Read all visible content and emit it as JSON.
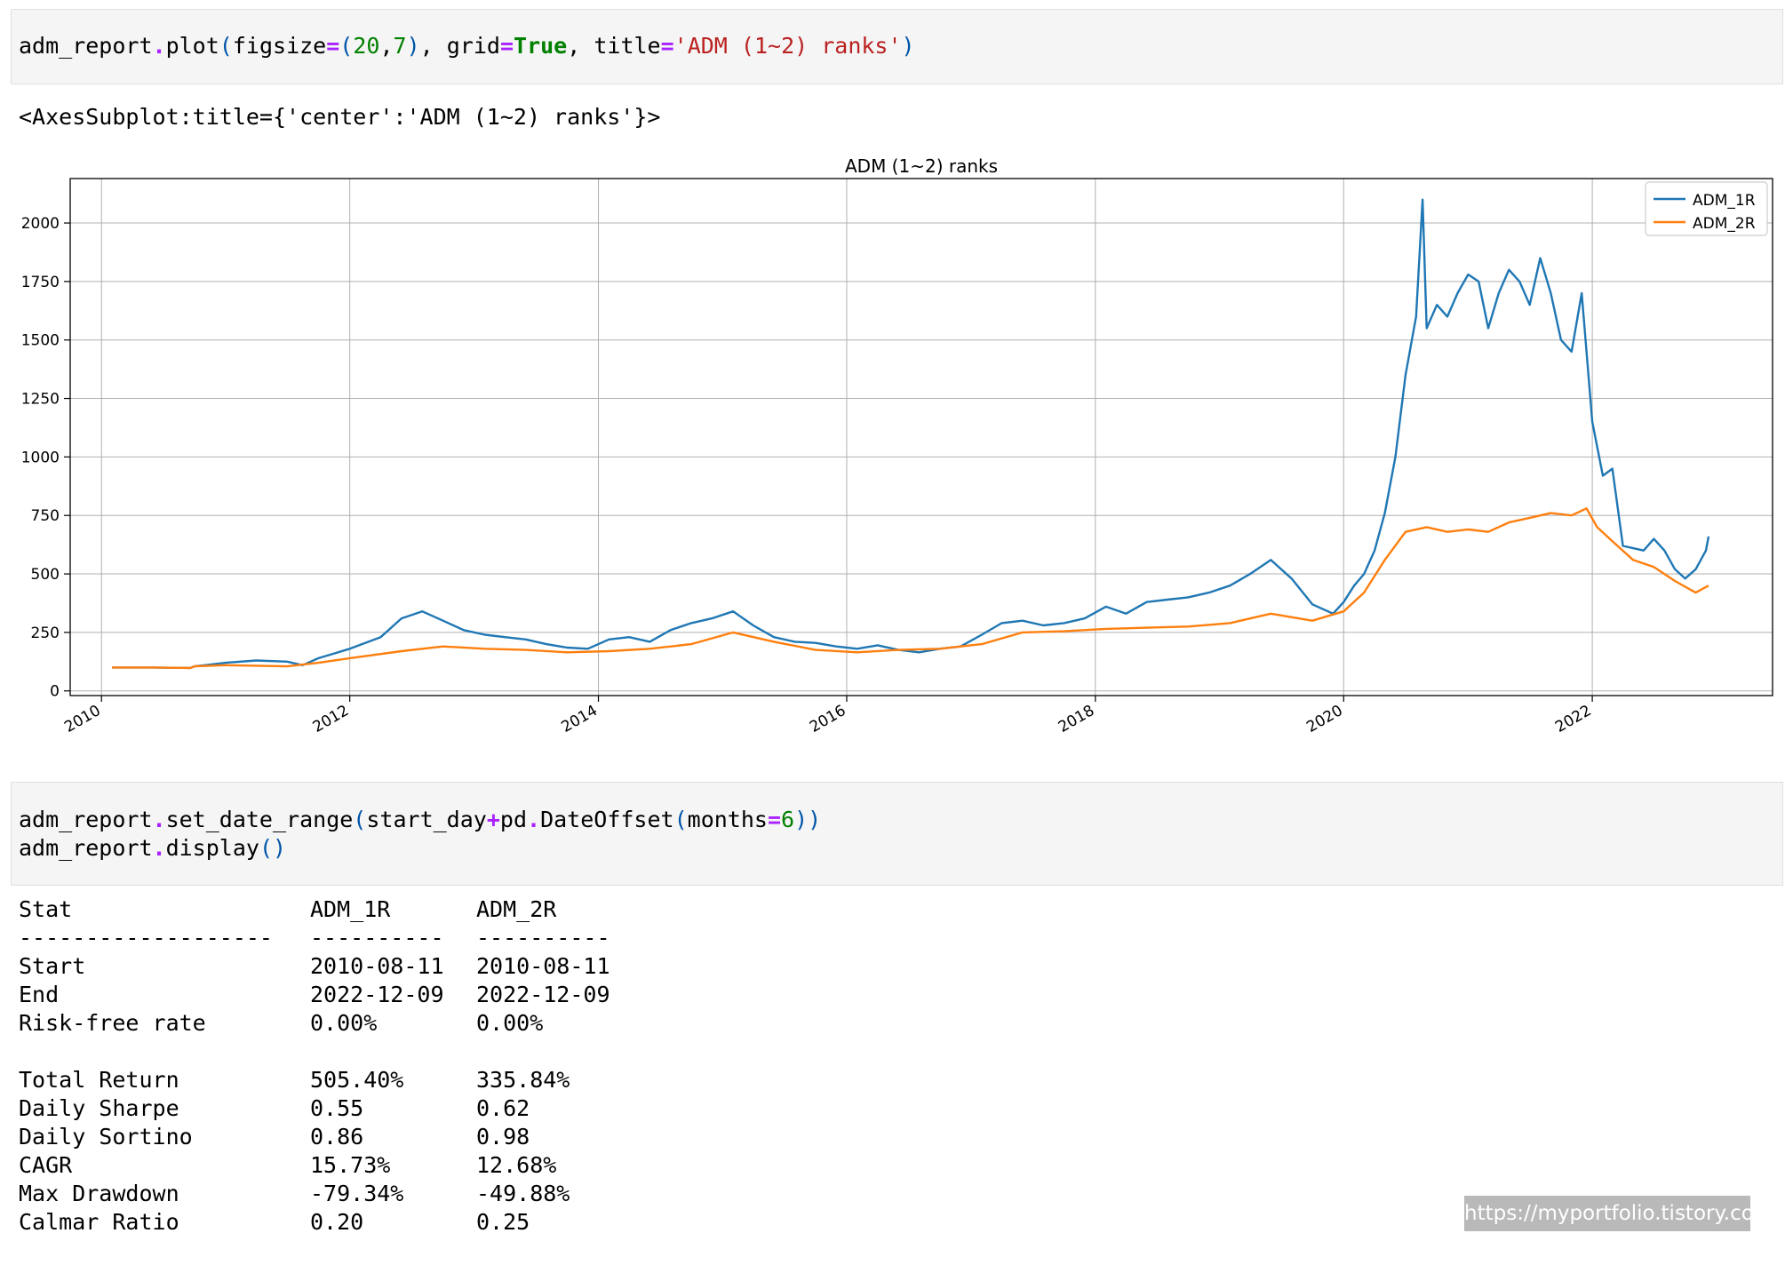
{
  "cell1": {
    "parts": [
      "adm_report",
      ".",
      "plot",
      "(",
      "figsize",
      "=",
      "(",
      "20",
      ",",
      "7",
      ")",
      ", grid",
      "=",
      "True",
      ", title",
      "=",
      "'ADM (1~2) ranks'",
      ")"
    ]
  },
  "output1": "<AxesSubplot:title={'center':'ADM (1~2) ranks'}>",
  "cell2": {
    "line1": [
      "adm_report",
      ".",
      "set_date_range",
      "(",
      "start_day",
      "+",
      "pd",
      ".",
      "DateOffset",
      "(",
      "months",
      "=",
      "6",
      ")",
      ")"
    ],
    "line2": [
      "adm_report",
      ".",
      "display",
      "()"
    ]
  },
  "chart_data": {
    "type": "line",
    "title": "ADM (1~2) ranks",
    "xlabel": "",
    "ylabel": "",
    "xlim": [
      "2009-10-01",
      "2023-06-15"
    ],
    "ylim": [
      -20,
      2190
    ],
    "yticks": [
      0,
      250,
      500,
      750,
      1000,
      1250,
      1500,
      1750,
      2000
    ],
    "xticks": [
      "2010",
      "2012",
      "2014",
      "2016",
      "2018",
      "2020",
      "2022"
    ],
    "grid": true,
    "legend_position": "top-right",
    "series": [
      {
        "name": "ADM_1R",
        "color": "#1f77b4",
        "x": [
          "2010-02-01",
          "2010-06-01",
          "2010-09-20",
          "2010-10-01",
          "2010-11-01",
          "2011-01-01",
          "2011-04-01",
          "2011-07-01",
          "2011-08-15",
          "2011-10-01",
          "2012-01-01",
          "2012-04-01",
          "2012-06-01",
          "2012-08-01",
          "2012-10-01",
          "2012-12-01",
          "2013-02-01",
          "2013-04-01",
          "2013-06-01",
          "2013-08-01",
          "2013-10-01",
          "2013-12-01",
          "2014-02-01",
          "2014-04-01",
          "2014-06-01",
          "2014-08-01",
          "2014-10-01",
          "2014-12-01",
          "2015-02-01",
          "2015-04-01",
          "2015-06-01",
          "2015-08-01",
          "2015-10-01",
          "2015-12-01",
          "2016-02-01",
          "2016-04-01",
          "2016-06-01",
          "2016-08-01",
          "2016-10-01",
          "2016-12-01",
          "2017-02-01",
          "2017-04-01",
          "2017-06-01",
          "2017-08-01",
          "2017-10-01",
          "2017-12-01",
          "2018-02-01",
          "2018-04-01",
          "2018-06-01",
          "2018-08-01",
          "2018-10-01",
          "2018-12-01",
          "2019-02-01",
          "2019-04-01",
          "2019-06-01",
          "2019-08-01",
          "2019-10-01",
          "2019-12-01",
          "2020-01-01",
          "2020-02-01",
          "2020-03-01",
          "2020-04-01",
          "2020-05-01",
          "2020-06-01",
          "2020-07-01",
          "2020-08-01",
          "2020-08-20",
          "2020-09-01",
          "2020-10-01",
          "2020-11-01",
          "2020-12-01",
          "2021-01-01",
          "2021-02-01",
          "2021-03-01",
          "2021-04-01",
          "2021-05-01",
          "2021-06-01",
          "2021-07-01",
          "2021-08-01",
          "2021-09-01",
          "2021-10-01",
          "2021-11-01",
          "2021-12-01",
          "2022-01-01",
          "2022-02-01",
          "2022-03-01",
          "2022-04-01",
          "2022-05-01",
          "2022-06-01",
          "2022-07-01",
          "2022-08-01",
          "2022-09-01",
          "2022-10-01",
          "2022-11-01",
          "2022-12-01",
          "2022-12-09"
        ],
        "values": [
          100,
          100,
          98,
          105,
          110,
          120,
          130,
          125,
          110,
          140,
          180,
          230,
          310,
          340,
          300,
          260,
          240,
          230,
          220,
          200,
          185,
          180,
          220,
          230,
          210,
          260,
          290,
          310,
          340,
          280,
          230,
          210,
          205,
          190,
          180,
          195,
          175,
          165,
          180,
          190,
          240,
          290,
          300,
          280,
          290,
          310,
          360,
          330,
          380,
          390,
          400,
          420,
          450,
          500,
          560,
          480,
          370,
          330,
          380,
          450,
          500,
          600,
          760,
          1000,
          1350,
          1600,
          2100,
          1550,
          1650,
          1600,
          1700,
          1780,
          1750,
          1550,
          1700,
          1800,
          1750,
          1650,
          1850,
          1700,
          1500,
          1450,
          1700,
          1150,
          920,
          950,
          620,
          610,
          600,
          650,
          600,
          520,
          480,
          520,
          600,
          660
        ]
      },
      {
        "name": "ADM_2R",
        "color": "#ff7f0e",
        "x": [
          "2010-02-01",
          "2010-06-01",
          "2010-09-20",
          "2010-10-01",
          "2011-01-01",
          "2011-07-01",
          "2011-10-01",
          "2012-01-01",
          "2012-06-01",
          "2012-10-01",
          "2013-02-01",
          "2013-06-01",
          "2013-10-01",
          "2014-02-01",
          "2014-06-01",
          "2014-10-01",
          "2015-02-01",
          "2015-06-01",
          "2015-10-01",
          "2016-02-01",
          "2016-06-01",
          "2016-10-01",
          "2017-02-01",
          "2017-06-01",
          "2017-10-01",
          "2018-02-01",
          "2018-06-01",
          "2018-10-01",
          "2019-02-01",
          "2019-06-01",
          "2019-10-01",
          "2020-01-01",
          "2020-03-01",
          "2020-05-01",
          "2020-07-01",
          "2020-09-01",
          "2020-11-01",
          "2021-01-01",
          "2021-03-01",
          "2021-05-01",
          "2021-07-01",
          "2021-09-01",
          "2021-11-01",
          "2021-12-15",
          "2022-01-15",
          "2022-03-01",
          "2022-05-01",
          "2022-07-01",
          "2022-09-01",
          "2022-11-01",
          "2022-12-09"
        ],
        "values": [
          100,
          100,
          98,
          105,
          110,
          105,
          120,
          140,
          170,
          190,
          180,
          175,
          165,
          170,
          180,
          200,
          250,
          210,
          175,
          165,
          175,
          180,
          200,
          250,
          255,
          265,
          270,
          275,
          290,
          330,
          300,
          340,
          420,
          560,
          680,
          700,
          680,
          690,
          680,
          720,
          740,
          760,
          750,
          780,
          700,
          640,
          560,
          530,
          470,
          420,
          450
        ]
      }
    ]
  },
  "stats": {
    "header": [
      "Stat",
      "ADM_1R",
      "ADM_2R"
    ],
    "separator": [
      "-------------------",
      "----------",
      "----------"
    ],
    "group1": [
      [
        "Start",
        "2010-08-11",
        "2010-08-11"
      ],
      [
        "End",
        "2022-12-09",
        "2022-12-09"
      ],
      [
        "Risk-free rate",
        "0.00%",
        "0.00%"
      ]
    ],
    "group2": [
      [
        "Total Return",
        "505.40%",
        "335.84%"
      ],
      [
        "Daily Sharpe",
        "0.55",
        "0.62"
      ],
      [
        "Daily Sortino",
        "0.86",
        "0.98"
      ],
      [
        "CAGR",
        "15.73%",
        "12.68%"
      ],
      [
        "Max Drawdown",
        "-79.34%",
        "-49.88%"
      ],
      [
        "Calmar Ratio",
        "0.20",
        "0.25"
      ]
    ]
  },
  "watermark": "https://myportfolio.tistory.com"
}
